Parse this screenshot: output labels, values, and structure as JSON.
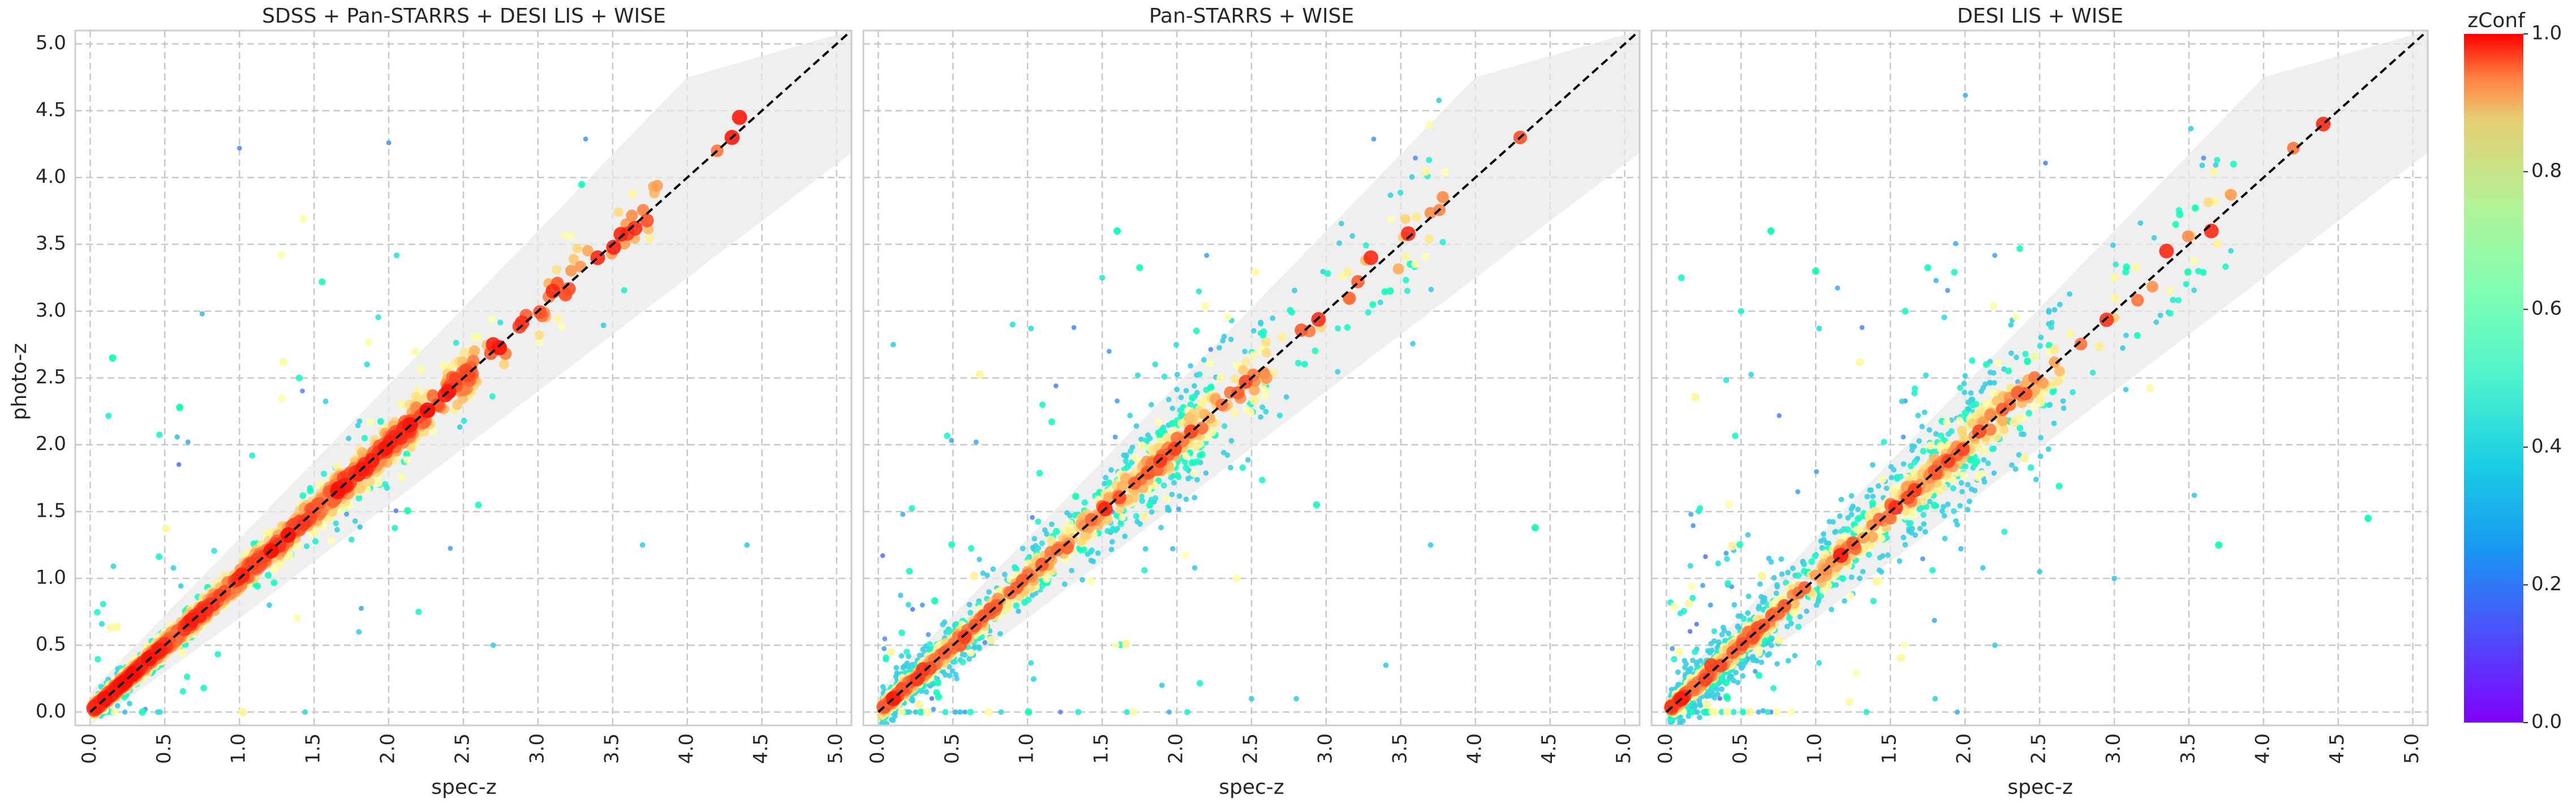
{
  "colors": {
    "background": "#ffffff",
    "frame": "#cccccc",
    "grid": "#c8c8c8",
    "band": "#e8e8e8",
    "identity_line": "#000000",
    "text": "#262626"
  },
  "colorbar": {
    "label": "zConf",
    "colormap": "rainbow",
    "range": [
      0.0,
      1.0
    ],
    "ticks": [
      "0.0",
      "0.2",
      "0.4",
      "0.6",
      "0.8",
      "1.0"
    ]
  },
  "chart_data": [
    {
      "type": "scatter",
      "title": "SDSS + Pan-STARRS + DESI LIS + WISE",
      "xlabel": "spec-z",
      "ylabel": "photo-z",
      "xlim": [
        -0.1,
        5.1
      ],
      "ylim": [
        -0.1,
        5.1
      ],
      "x_ticks": [
        "0.0",
        "0.5",
        "1.0",
        "1.5",
        "2.0",
        "2.5",
        "3.0",
        "3.5",
        "4.0",
        "4.5",
        "5.0"
      ],
      "y_ticks": [
        "0.0",
        "0.5",
        "1.0",
        "1.5",
        "2.0",
        "2.5",
        "3.0",
        "3.5",
        "4.0",
        "4.5",
        "5.0"
      ],
      "grid": true,
      "reference_line": "photo-z = spec-z (dashed)",
      "band": "shaded region around the 1:1 line, widening with redshift",
      "color_by": "zConf",
      "points": [
        {
          "x": 0.1,
          "y": 0.1,
          "c": 0.98
        },
        {
          "x": 0.3,
          "y": 0.3,
          "c": 0.95
        },
        {
          "x": 0.5,
          "y": 0.5,
          "c": 0.93
        },
        {
          "x": 0.7,
          "y": 0.72,
          "c": 0.92
        },
        {
          "x": 0.9,
          "y": 0.9,
          "c": 0.9
        },
        {
          "x": 1.1,
          "y": 1.08,
          "c": 0.9
        },
        {
          "x": 1.3,
          "y": 1.3,
          "c": 0.8
        },
        {
          "x": 1.5,
          "y": 1.5,
          "c": 0.88
        },
        {
          "x": 1.7,
          "y": 1.75,
          "c": 0.92
        },
        {
          "x": 1.85,
          "y": 1.82,
          "c": 0.95
        },
        {
          "x": 2.1,
          "y": 2.12,
          "c": 0.95
        },
        {
          "x": 2.4,
          "y": 2.4,
          "c": 0.97
        },
        {
          "x": 2.7,
          "y": 2.75,
          "c": 0.96
        },
        {
          "x": 3.1,
          "y": 3.15,
          "c": 0.95
        },
        {
          "x": 3.4,
          "y": 3.4,
          "c": 0.95
        },
        {
          "x": 3.65,
          "y": 3.62,
          "c": 0.95
        },
        {
          "x": 4.3,
          "y": 4.3,
          "c": 0.97
        },
        {
          "x": 4.35,
          "y": 4.45,
          "c": 0.97
        },
        {
          "x": 4.2,
          "y": 4.2,
          "c": 0.85
        },
        {
          "x": 1.0,
          "y": 4.22,
          "c": 0.2
        },
        {
          "x": 2.0,
          "y": 4.26,
          "c": 0.2
        },
        {
          "x": 0.75,
          "y": 2.98,
          "c": 0.25
        },
        {
          "x": 0.6,
          "y": 2.28,
          "c": 0.5
        },
        {
          "x": 0.15,
          "y": 2.65,
          "c": 0.5
        },
        {
          "x": 1.4,
          "y": 2.5,
          "c": 0.45
        },
        {
          "x": 1.2,
          "y": 0.8,
          "c": 0.3
        },
        {
          "x": 1.8,
          "y": 0.6,
          "c": 0.3
        },
        {
          "x": 2.2,
          "y": 0.75,
          "c": 0.4
        },
        {
          "x": 2.7,
          "y": 0.5,
          "c": 0.3
        },
        {
          "x": 3.7,
          "y": 1.25,
          "c": 0.3
        },
        {
          "x": 4.4,
          "y": 1.25,
          "c": 0.3
        },
        {
          "x": 2.6,
          "y": 1.55,
          "c": 0.45
        }
      ]
    },
    {
      "type": "scatter",
      "title": "Pan-STARRS + WISE",
      "xlabel": "spec-z",
      "ylabel": "",
      "xlim": [
        -0.1,
        5.1
      ],
      "ylim": [
        -0.1,
        5.1
      ],
      "x_ticks": [
        "0.0",
        "0.5",
        "1.0",
        "1.5",
        "2.0",
        "2.5",
        "3.0",
        "3.5",
        "4.0",
        "4.5",
        "5.0"
      ],
      "grid": true,
      "reference_line": "photo-z = spec-z (dashed)",
      "band": "shaded region around the 1:1 line, widening with redshift",
      "color_by": "zConf",
      "points": [
        {
          "x": 0.1,
          "y": 0.1,
          "c": 0.97
        },
        {
          "x": 0.3,
          "y": 0.32,
          "c": 0.93
        },
        {
          "x": 0.55,
          "y": 0.5,
          "c": 0.88
        },
        {
          "x": 0.8,
          "y": 0.85,
          "c": 0.8
        },
        {
          "x": 1.0,
          "y": 1.05,
          "c": 0.78
        },
        {
          "x": 1.3,
          "y": 1.3,
          "c": 0.72
        },
        {
          "x": 1.6,
          "y": 1.62,
          "c": 0.8
        },
        {
          "x": 1.8,
          "y": 1.8,
          "c": 0.85
        },
        {
          "x": 2.0,
          "y": 2.05,
          "c": 0.85
        },
        {
          "x": 2.3,
          "y": 2.3,
          "c": 0.85
        },
        {
          "x": 2.6,
          "y": 2.5,
          "c": 0.8
        },
        {
          "x": 3.3,
          "y": 3.4,
          "c": 0.95
        },
        {
          "x": 3.55,
          "y": 3.58,
          "c": 0.95
        },
        {
          "x": 4.3,
          "y": 4.3,
          "c": 0.9
        },
        {
          "x": 1.6,
          "y": 3.6,
          "c": 0.5
        },
        {
          "x": 1.5,
          "y": 3.25,
          "c": 0.35
        },
        {
          "x": 0.1,
          "y": 2.75,
          "c": 0.3
        },
        {
          "x": 0.9,
          "y": 2.9,
          "c": 0.35
        },
        {
          "x": 1.1,
          "y": 2.3,
          "c": 0.4
        },
        {
          "x": 2.4,
          "y": 1.0,
          "c": 0.55
        },
        {
          "x": 2.8,
          "y": 0.1,
          "c": 0.3
        },
        {
          "x": 3.4,
          "y": 0.35,
          "c": 0.3
        },
        {
          "x": 3.7,
          "y": 1.25,
          "c": 0.3
        },
        {
          "x": 4.4,
          "y": 1.38,
          "c": 0.5
        },
        {
          "x": 2.5,
          "y": 0.1,
          "c": 0.3
        },
        {
          "x": 1.9,
          "y": 0.2,
          "c": 0.3
        }
      ]
    },
    {
      "type": "scatter",
      "title": "DESI LIS + WISE",
      "xlabel": "spec-z",
      "ylabel": "",
      "xlim": [
        -0.1,
        5.1
      ],
      "ylim": [
        -0.1,
        5.1
      ],
      "x_ticks": [
        "0.0",
        "0.5",
        "1.0",
        "1.5",
        "2.0",
        "2.5",
        "3.0",
        "3.5",
        "4.0",
        "4.5",
        "5.0"
      ],
      "grid": true,
      "reference_line": "photo-z = spec-z (dashed)",
      "band": "shaded region around the 1:1 line, widening with redshift",
      "color_by": "zConf",
      "points": [
        {
          "x": 0.1,
          "y": 0.1,
          "c": 0.97
        },
        {
          "x": 0.3,
          "y": 0.35,
          "c": 0.92
        },
        {
          "x": 0.55,
          "y": 0.6,
          "c": 0.85
        },
        {
          "x": 0.8,
          "y": 0.8,
          "c": 0.78
        },
        {
          "x": 1.1,
          "y": 1.1,
          "c": 0.7
        },
        {
          "x": 1.3,
          "y": 1.3,
          "c": 0.68
        },
        {
          "x": 1.5,
          "y": 1.45,
          "c": 0.85
        },
        {
          "x": 1.7,
          "y": 1.7,
          "c": 0.8
        },
        {
          "x": 2.0,
          "y": 2.0,
          "c": 0.6
        },
        {
          "x": 2.3,
          "y": 2.3,
          "c": 0.85
        },
        {
          "x": 2.6,
          "y": 2.6,
          "c": 0.6
        },
        {
          "x": 3.0,
          "y": 2.95,
          "c": 0.7
        },
        {
          "x": 3.35,
          "y": 3.45,
          "c": 0.95
        },
        {
          "x": 3.65,
          "y": 3.6,
          "c": 0.95
        },
        {
          "x": 4.2,
          "y": 4.22,
          "c": 0.85
        },
        {
          "x": 4.4,
          "y": 4.4,
          "c": 0.95
        },
        {
          "x": 0.1,
          "y": 3.25,
          "c": 0.45
        },
        {
          "x": 0.5,
          "y": 3.0,
          "c": 0.4
        },
        {
          "x": 1.0,
          "y": 3.3,
          "c": 0.5
        },
        {
          "x": 1.6,
          "y": 3.0,
          "c": 0.45
        },
        {
          "x": 0.7,
          "y": 3.6,
          "c": 0.5
        },
        {
          "x": 2.2,
          "y": 0.5,
          "c": 0.3
        },
        {
          "x": 2.5,
          "y": 1.05,
          "c": 0.3
        },
        {
          "x": 3.0,
          "y": 1.0,
          "c": 0.3
        },
        {
          "x": 3.7,
          "y": 1.25,
          "c": 0.5
        },
        {
          "x": 4.7,
          "y": 1.45,
          "c": 0.5
        },
        {
          "x": 1.8,
          "y": 0.1,
          "c": 0.3
        },
        {
          "x": 2.4,
          "y": 1.9,
          "c": 0.6
        }
      ]
    }
  ]
}
